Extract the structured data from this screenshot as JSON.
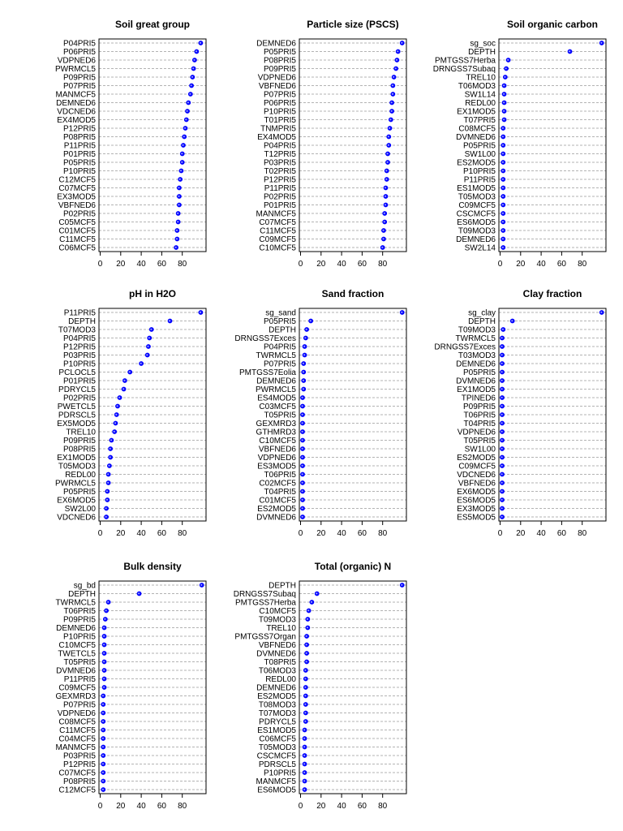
{
  "style": {
    "point_color": "#0000ff",
    "point_highlight": "#9aa0ff",
    "grid_color": "#9a9a9a"
  },
  "chart_data": [
    {
      "type": "scatter",
      "title": "Soil great group",
      "xlim": [
        0,
        100
      ],
      "xticks": [
        0,
        20,
        40,
        60,
        80
      ],
      "categories": [
        "P04PRI5",
        "P06PRI5",
        "VDPNED6",
        "PWRMCL5",
        "P09PRI5",
        "P07PRI5",
        "MANMCF5",
        "DEMNED6",
        "VDCNED6",
        "EX4MOD5",
        "P12PRI5",
        "P08PRI5",
        "P11PRI5",
        "P01PRI5",
        "P05PRI5",
        "P10PRI5",
        "C12MCF5",
        "C07MCF5",
        "EX3MOD5",
        "VBFNED6",
        "P02PRI5",
        "C05MCF5",
        "C01MCF5",
        "C11MCF5",
        "C06MCF5"
      ],
      "values": [
        98,
        94,
        92,
        91,
        90,
        89,
        88,
        86,
        85,
        84,
        83,
        82,
        81,
        80,
        80,
        79,
        78,
        77,
        77,
        77,
        76,
        76,
        75,
        75,
        74
      ]
    },
    {
      "type": "scatter",
      "title": "Particle size (PSCS)",
      "xlim": [
        0,
        100
      ],
      "xticks": [
        0,
        20,
        40,
        60,
        80
      ],
      "categories": [
        "DEMNED6",
        "P05PRI5",
        "P08PRI5",
        "P09PRI5",
        "VDPNED6",
        "VBFNED6",
        "P07PRI5",
        "P06PRI5",
        "P10PRI5",
        "T01PRI5",
        "TNMPRI5",
        "EX4MOD5",
        "P04PRI5",
        "T12PRI5",
        "P03PRI5",
        "T02PRI5",
        "P12PRI5",
        "P11PRI5",
        "P02PRI5",
        "P01PRI5",
        "MANMCF5",
        "C07MCF5",
        "C11MCF5",
        "C09MCF5",
        "C10MCF5"
      ],
      "values": [
        99,
        95,
        94,
        93,
        91,
        90,
        90,
        89,
        89,
        88,
        87,
        86,
        86,
        85,
        85,
        84,
        84,
        83,
        83,
        83,
        82,
        82,
        81,
        81,
        80
      ]
    },
    {
      "type": "scatter",
      "title": "Soil organic carbon",
      "xlim": [
        0,
        100
      ],
      "xticks": [
        0,
        20,
        40,
        60,
        80
      ],
      "categories": [
        "sg_soc",
        "DEPTH",
        "PMTGSS7Herba",
        "DRNGSS7Subaq",
        "TREL10",
        "T06MOD3",
        "SW1L14",
        "REDL00",
        "EX1MOD5",
        "T07PRI5",
        "C08MCF5",
        "DVMNED6",
        "P05PRI5",
        "SW1L00",
        "ES2MOD5",
        "P10PRI5",
        "P11PRI5",
        "ES1MOD5",
        "T05MOD3",
        "C09MCF5",
        "CSCMCF5",
        "ES6MOD5",
        "T09MOD3",
        "DEMNED6",
        "SW2L14"
      ],
      "values": [
        99,
        68,
        8,
        6,
        5,
        4,
        4,
        4,
        4,
        4,
        3,
        3,
        3,
        3,
        3,
        3,
        3,
        3,
        3,
        3,
        3,
        3,
        3,
        3,
        3
      ]
    },
    {
      "type": "scatter",
      "title": "pH in H2O",
      "xlim": [
        0,
        100
      ],
      "xticks": [
        0,
        20,
        40,
        60,
        80
      ],
      "categories": [
        "P11PRI5",
        "DEPTH",
        "T07MOD3",
        "P04PRI5",
        "P12PRI5",
        "P03PRI5",
        "P10PRI5",
        "PCLOCL5",
        "P01PRI5",
        "PDRYCL5",
        "P02PRI5",
        "PWETCL5",
        "PDRSCL5",
        "EX5MOD5",
        "TREL10",
        "P09PRI5",
        "P08PRI5",
        "EX1MOD5",
        "T05MOD3",
        "REDL00",
        "PWRMCL5",
        "P05PRI5",
        "EX6MOD5",
        "SW2L00",
        "VDCNED6"
      ],
      "values": [
        98,
        68,
        50,
        48,
        47,
        46,
        40,
        29,
        24,
        23,
        19,
        17,
        16,
        15,
        14,
        11,
        10,
        10,
        9,
        8,
        8,
        7,
        7,
        6,
        6
      ]
    },
    {
      "type": "scatter",
      "title": "Sand fraction",
      "xlim": [
        0,
        100
      ],
      "xticks": [
        0,
        20,
        40,
        60,
        80
      ],
      "categories": [
        "sg_sand",
        "P05PRI5",
        "DEPTH",
        "DRNGSS7Exces",
        "P04PRI5",
        "TWRMCL5",
        "P07PRI5",
        "PMTGSS7Eolia",
        "DEMNED6",
        "PWRMCL5",
        "ES4MOD5",
        "C03MCF5",
        "T05PRI5",
        "GEXMRD3",
        "GTHMRD3",
        "C10MCF5",
        "VBFNED6",
        "VDPNED6",
        "ES3MOD5",
        "T06PRI5",
        "C02MCF5",
        "T04PRI5",
        "C01MCF5",
        "ES2MOD5",
        "DVMNED6"
      ],
      "values": [
        99,
        10,
        6,
        5,
        4,
        4,
        3,
        3,
        3,
        3,
        2,
        2,
        2,
        2,
        2,
        2,
        2,
        2,
        2,
        2,
        2,
        2,
        2,
        2,
        2
      ]
    },
    {
      "type": "scatter",
      "title": "Clay fraction",
      "xlim": [
        0,
        100
      ],
      "xticks": [
        0,
        20,
        40,
        60,
        80
      ],
      "categories": [
        "sg_clay",
        "DEPTH",
        "T09MOD3",
        "TWRMCL5",
        "DRNGSS7Exces",
        "T03MOD3",
        "DEMNED6",
        "P05PRI5",
        "DVMNED6",
        "EX1MOD5",
        "TPINED6",
        "P09PRI5",
        "T06PRI5",
        "T04PRI5",
        "VDPNED6",
        "T05PRI5",
        "SW1L00",
        "ES2MOD5",
        "C09MCF5",
        "VDCNED6",
        "VBFNED6",
        "EX6MOD5",
        "ES6MOD5",
        "EX3MOD5",
        "ES5MOD5"
      ],
      "values": [
        99,
        12,
        3,
        2,
        2,
        2,
        2,
        2,
        2,
        2,
        2,
        2,
        2,
        2,
        2,
        2,
        2,
        2,
        2,
        2,
        2,
        2,
        2,
        2,
        2
      ]
    },
    {
      "type": "scatter",
      "title": "Bulk density",
      "xlim": [
        0,
        100
      ],
      "xticks": [
        0,
        20,
        40,
        60,
        80
      ],
      "categories": [
        "sg_bd",
        "DEPTH",
        "TWRMCL5",
        "T06PRI5",
        "P09PRI5",
        "DEMNED6",
        "P10PRI5",
        "C10MCF5",
        "TWETCL5",
        "T05PRI5",
        "DVMNED6",
        "P11PRI5",
        "C09MCF5",
        "GEXMRD3",
        "P07PRI5",
        "VDPNED6",
        "C08MCF5",
        "C11MCF5",
        "C04MCF5",
        "MANMCF5",
        "P03PRI5",
        "P12PRI5",
        "C07MCF5",
        "P08PRI5",
        "C12MCF5"
      ],
      "values": [
        99,
        38,
        8,
        6,
        5,
        4,
        4,
        4,
        4,
        4,
        4,
        4,
        4,
        3,
        3,
        3,
        3,
        3,
        3,
        3,
        3,
        3,
        3,
        3,
        3
      ]
    },
    {
      "type": "scatter",
      "title": "Total (organic) N",
      "xlim": [
        0,
        100
      ],
      "xticks": [
        0,
        20,
        40,
        60,
        80
      ],
      "categories": [
        "DEPTH",
        "DRNGSS7Subaq",
        "PMTGSS7Herba",
        "C10MCF5",
        "T09MOD3",
        "TREL10",
        "PMTGSS7Organ",
        "VBFNED6",
        "DVMNED6",
        "T08PRI5",
        "T06MOD3",
        "REDL00",
        "DEMNED6",
        "ES2MOD5",
        "T08MOD3",
        "T07MOD3",
        "PDRYCL5",
        "ES1MOD5",
        "C06MCF5",
        "T05MOD3",
        "CSCMCF5",
        "PDRSCL5",
        "P10PRI5",
        "MANMCF5",
        "ES6MOD5"
      ],
      "values": [
        99,
        16,
        11,
        8,
        7,
        7,
        6,
        6,
        6,
        6,
        5,
        5,
        5,
        5,
        5,
        5,
        5,
        4,
        4,
        4,
        4,
        4,
        4,
        4,
        4
      ]
    }
  ]
}
